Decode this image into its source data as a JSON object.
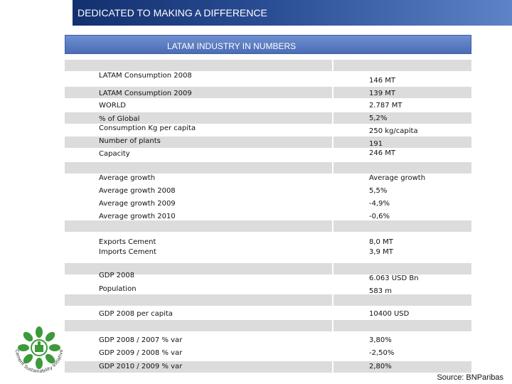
{
  "slide_title": "DEDICATED TO MAKING A DIFFERENCE",
  "table_title": "LATAM INDUSTRY IN NUMBERS",
  "rows": [
    {
      "label": "LATAM Consumption 2008",
      "value": "146  MT"
    },
    {
      "label": "LATAM Consumption 2009",
      "value": "139  MT"
    },
    {
      "label": "WORLD",
      "value": "2.787 MT"
    },
    {
      "label": "% of Global",
      "value": "5,2%"
    },
    {
      "label": "Consumption Kg per capita",
      "value": "250 kg/capita"
    },
    {
      "label": "Number of plants",
      "value": "191"
    },
    {
      "label": "Capacity",
      "value": "246 MT"
    },
    {
      "label": "Average growth",
      "value": "Average growth"
    },
    {
      "label": "Average growth 2008",
      "value": "5,5%"
    },
    {
      "label": "Average growth 2009",
      "value": "-4,9%"
    },
    {
      "label": "Average growth 2010",
      "value": "-0,6%"
    },
    {
      "label": "Exports Cement",
      "value": "8,0 MT"
    },
    {
      "label": "Imports Cement",
      "value": "3,9 MT"
    },
    {
      "label": "GDP 2008",
      "value": "6.063 USD Bn"
    },
    {
      "label": "Population",
      "value": "583 m"
    },
    {
      "label": "GDP 2008 per capita",
      "value": "10400 USD"
    },
    {
      "label": "GDP 2008 / 2007 % var",
      "value": "3,80%"
    },
    {
      "label": "GDP 2009 / 2008 % var",
      "value": "-2,50%"
    },
    {
      "label": "GDP 2010 / 2009 % var",
      "value": "2,80%"
    }
  ],
  "logo_text": "Cement Sustainability Initiative",
  "source": "Source: BNParibas",
  "colors": {
    "banner": "#1e3c7e",
    "header": "#5a7cc2",
    "stripe": "#dcdcdc",
    "logo_green": "#3c9a3a"
  }
}
